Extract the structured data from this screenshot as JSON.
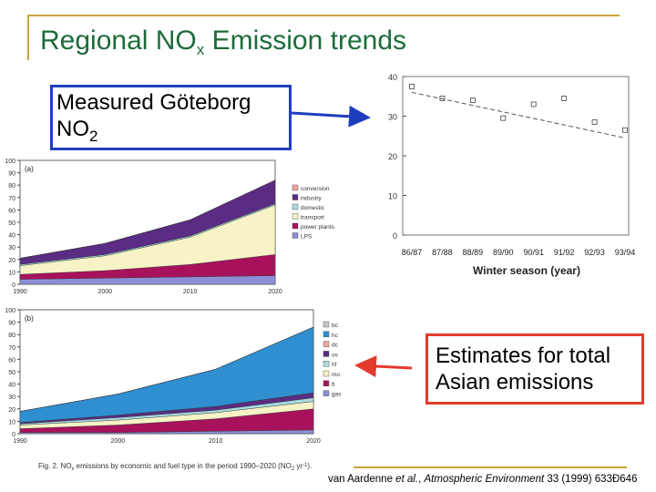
{
  "slide": {
    "title_main": "Regional NO",
    "title_sub": "x",
    "title_rest": " Emission trends",
    "measured_label_line1": "Measured Göteborg",
    "measured_label_line2": "NO",
    "measured_label_sub": "2",
    "estimates_label_line1": "Estimates for total",
    "estimates_label_line2": "Asian emissions",
    "citation_prefix": "van Aardenne ",
    "citation_etal": "et al.",
    "citation_mid": ", ",
    "citation_journal": "Atmospheric Environment",
    "citation_suffix": " 33 (1999) 633Ð646",
    "colors": {
      "title": "#1d6b3a",
      "rule": "#c8a53a",
      "blue_box": "#1f3ebd",
      "red_box": "#e33b2c"
    }
  },
  "chart_data": [
    {
      "type": "scatter",
      "xlabel": "Winter season (year)",
      "ylabel": "",
      "categories": [
        "86/87",
        "87/88",
        "88/89",
        "89/90",
        "90/91",
        "91/92",
        "92/93",
        "93/94"
      ],
      "y_ticks": [
        "0",
        "10",
        "20",
        "30",
        "40"
      ],
      "ylim": [
        0,
        40
      ],
      "values": [
        37.5,
        34.5,
        34,
        29.5,
        33,
        34.5,
        28.5,
        26.5
      ],
      "trend": [
        36,
        24.5
      ],
      "grid": false
    },
    {
      "type": "area",
      "panel_label": "(a)",
      "x": [
        "1990",
        "2000",
        "2010",
        "2020"
      ],
      "y_ticks": [
        "0",
        "10",
        "20",
        "30",
        "40",
        "50",
        "60",
        "70",
        "80",
        "90",
        "100"
      ],
      "ylim": [
        0,
        100
      ],
      "series": [
        {
          "name": "LPS",
          "color": "#8c8fd6",
          "values": [
            4,
            5,
            6,
            7
          ]
        },
        {
          "name": "power plants",
          "color": "#a8125c",
          "values": [
            4,
            6,
            10,
            17
          ]
        },
        {
          "name": "transport",
          "color": "#f7f3c6",
          "values": [
            7,
            12,
            22,
            40
          ]
        },
        {
          "name": "domestic",
          "color": "#a7dbe0",
          "values": [
            1,
            1,
            1,
            1
          ]
        },
        {
          "name": "industry",
          "color": "#5b2c83",
          "values": [
            5,
            9,
            13,
            19
          ]
        },
        {
          "name": "conversion",
          "color": "#f3a39a",
          "values": [
            0,
            0,
            0,
            0
          ]
        }
      ]
    },
    {
      "type": "area",
      "panel_label": "(b)",
      "x": [
        "1990",
        "2000",
        "2010",
        "2020"
      ],
      "y_ticks": [
        "0",
        "10",
        "20",
        "30",
        "40",
        "50",
        "60",
        "70",
        "80",
        "90",
        "100"
      ],
      "ylim": [
        0,
        100
      ],
      "series": [
        {
          "name": "gas",
          "color": "#8c8fd6",
          "values": [
            1,
            1,
            2,
            3
          ]
        },
        {
          "name": "fl",
          "color": "#a8125c",
          "values": [
            3,
            6,
            10,
            17
          ]
        },
        {
          "name": "mo",
          "color": "#f7f3c6",
          "values": [
            3,
            4,
            5,
            6
          ]
        },
        {
          "name": "hf",
          "color": "#a7dbe0",
          "values": [
            1,
            2,
            2,
            3
          ]
        },
        {
          "name": "os",
          "color": "#5b2c83",
          "values": [
            1,
            2,
            3,
            4
          ]
        },
        {
          "name": "dc",
          "color": "#f3a39a",
          "values": [
            0,
            0,
            0,
            0
          ]
        },
        {
          "name": "hc",
          "color": "#2f8fd1",
          "values": [
            9,
            17,
            30,
            53
          ]
        },
        {
          "name": "bc",
          "color": "#c8c8c8",
          "values": [
            0,
            0,
            0,
            0
          ]
        }
      ]
    }
  ],
  "caption": {
    "prefix": "Fig. 2. NO",
    "sub": "x",
    "text": " emissions by economic and fuel type in the period 1990–2020 (NO",
    "sub2": "2",
    "text2": " yr",
    "sup": "-1",
    "end": ")."
  }
}
